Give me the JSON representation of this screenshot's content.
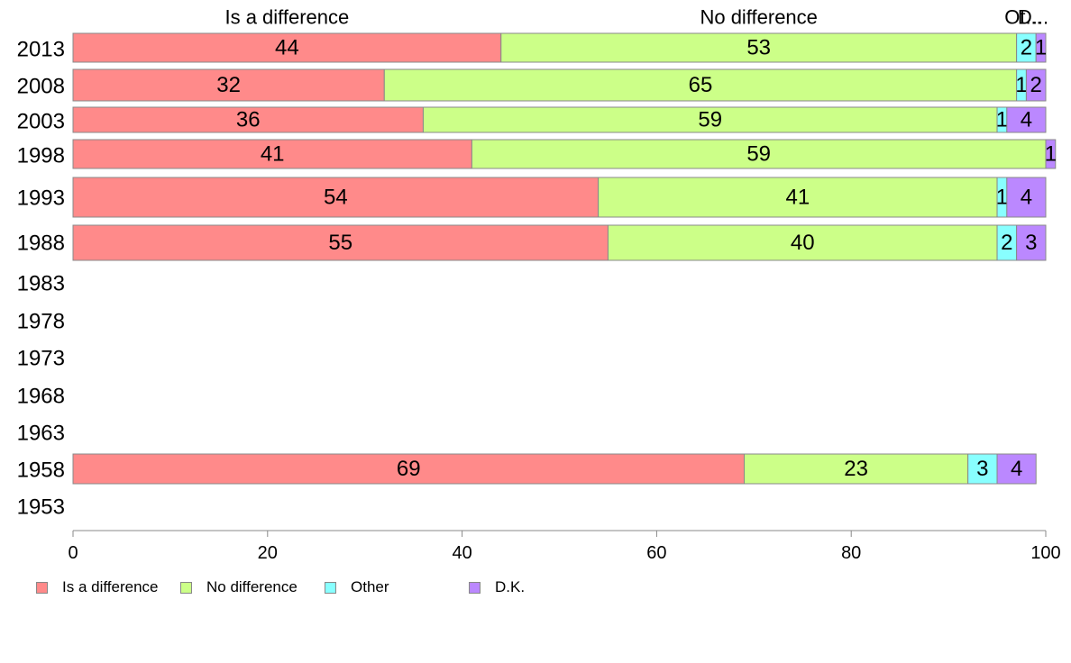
{
  "chart_data": {
    "type": "bar",
    "orientation": "horizontal",
    "stacked": true,
    "categories": [
      "2013",
      "2008",
      "2003",
      "1998",
      "1993",
      "1988",
      "1983",
      "1978",
      "1973",
      "1968",
      "1963",
      "1958",
      "1953"
    ],
    "series": [
      {
        "name": "Is a difference",
        "color": "#FF8A8A",
        "values": [
          44,
          32,
          36,
          41,
          54,
          55,
          null,
          null,
          null,
          null,
          null,
          69,
          null
        ]
      },
      {
        "name": "No difference",
        "color": "#CCFF88",
        "values": [
          53,
          65,
          59,
          59,
          41,
          40,
          null,
          null,
          null,
          null,
          null,
          23,
          null
        ]
      },
      {
        "name": "Other",
        "color": "#88FFFF",
        "values": [
          2,
          1,
          1,
          0,
          1,
          2,
          null,
          null,
          null,
          null,
          null,
          3,
          null
        ]
      },
      {
        "name": "D.K.",
        "color": "#BB88FF",
        "values": [
          1,
          2,
          4,
          1,
          4,
          3,
          null,
          null,
          null,
          null,
          null,
          4,
          null
        ]
      }
    ],
    "top_labels": [
      "Is a difference",
      "No difference",
      "Ot...",
      "D..."
    ],
    "xlim": [
      0,
      100
    ],
    "xticks": [
      0,
      20,
      40,
      60,
      80,
      100
    ],
    "xtick_labels": [
      "0",
      "20",
      "40",
      "60",
      "80",
      "100"
    ],
    "grid": false,
    "legend_position": "bottom-left"
  },
  "legend": {
    "items": [
      "Is a difference",
      "No difference",
      "Other",
      "D.K."
    ]
  }
}
